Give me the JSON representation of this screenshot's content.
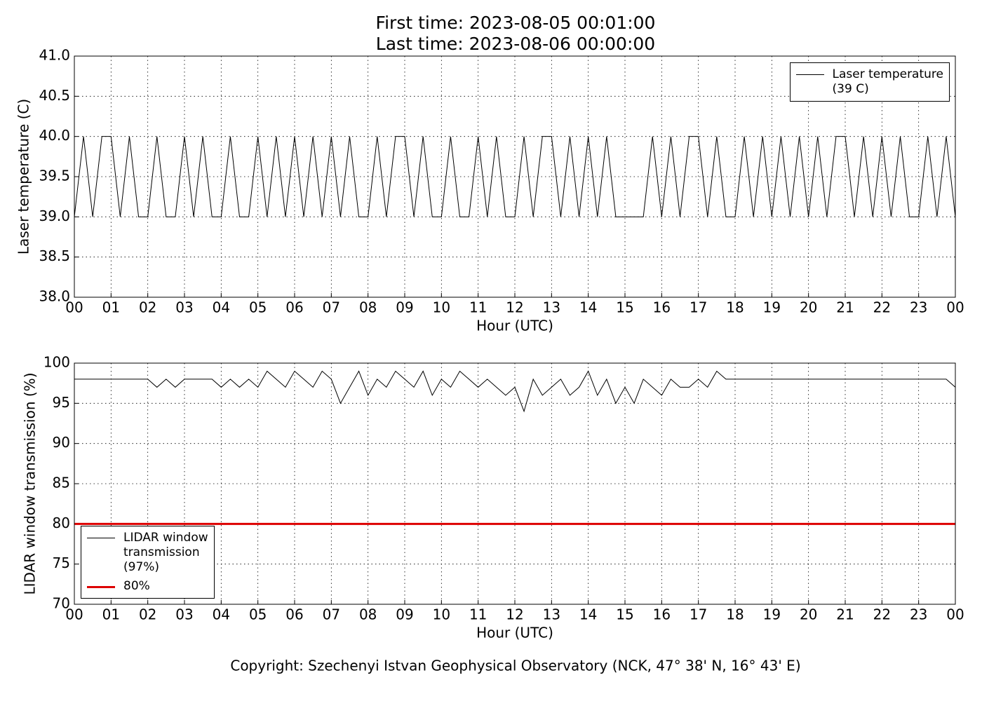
{
  "chart_data": [
    {
      "type": "line",
      "title": "First time: 2023-08-05 00:01:00",
      "subtitle": "Last time: 2023-08-06 00:00:00",
      "xlabel": "Hour (UTC)",
      "ylabel": "Laser temperature (C)",
      "xlim": [
        0,
        24
      ],
      "ylim": [
        38,
        41
      ],
      "grid": true,
      "legend": "upper right",
      "xticks": [
        {
          "value": 0,
          "label": "00"
        },
        {
          "value": 1,
          "label": "01"
        },
        {
          "value": 2,
          "label": "02"
        },
        {
          "value": 3,
          "label": "03"
        },
        {
          "value": 4,
          "label": "04"
        },
        {
          "value": 5,
          "label": "05"
        },
        {
          "value": 6,
          "label": "06"
        },
        {
          "value": 7,
          "label": "07"
        },
        {
          "value": 8,
          "label": "08"
        },
        {
          "value": 9,
          "label": "09"
        },
        {
          "value": 10,
          "label": "10"
        },
        {
          "value": 11,
          "label": "11"
        },
        {
          "value": 12,
          "label": "12"
        },
        {
          "value": 13,
          "label": "13"
        },
        {
          "value": 14,
          "label": "14"
        },
        {
          "value": 15,
          "label": "15"
        },
        {
          "value": 16,
          "label": "16"
        },
        {
          "value": 17,
          "label": "17"
        },
        {
          "value": 18,
          "label": "18"
        },
        {
          "value": 19,
          "label": "19"
        },
        {
          "value": 20,
          "label": "20"
        },
        {
          "value": 21,
          "label": "21"
        },
        {
          "value": 22,
          "label": "22"
        },
        {
          "value": 23,
          "label": "23"
        },
        {
          "value": 24,
          "label": "00"
        }
      ],
      "yticks": [
        {
          "value": 38,
          "label": "38.0"
        },
        {
          "value": 38.5,
          "label": "38.5"
        },
        {
          "value": 39,
          "label": "39.0"
        },
        {
          "value": 39.5,
          "label": "39.5"
        },
        {
          "value": 40,
          "label": "40.0"
        },
        {
          "value": 40.5,
          "label": "40.5"
        },
        {
          "value": 41,
          "label": "41.0"
        }
      ],
      "series": [
        {
          "name": "Laser temperature\n(39 C)",
          "color": "#000000",
          "width": 1,
          "x": [
            0,
            0.25,
            0.5,
            0.75,
            1,
            1.25,
            1.5,
            1.75,
            2,
            2.25,
            2.5,
            2.75,
            3,
            3.25,
            3.5,
            3.75,
            4,
            4.25,
            4.5,
            4.75,
            5,
            5.25,
            5.5,
            5.75,
            6,
            6.25,
            6.5,
            6.75,
            7,
            7.25,
            7.5,
            7.75,
            8,
            8.25,
            8.5,
            8.75,
            9,
            9.25,
            9.5,
            9.75,
            10,
            10.25,
            10.5,
            10.75,
            11,
            11.25,
            11.5,
            11.75,
            12,
            12.25,
            12.5,
            12.75,
            13,
            13.25,
            13.5,
            13.75,
            14,
            14.25,
            14.5,
            14.75,
            15,
            15.25,
            15.5,
            15.75,
            16,
            16.25,
            16.5,
            16.75,
            17,
            17.25,
            17.5,
            17.75,
            18,
            18.25,
            18.5,
            18.75,
            19,
            19.25,
            19.5,
            19.75,
            20,
            20.25,
            20.5,
            20.75,
            21,
            21.25,
            21.5,
            21.75,
            22,
            22.25,
            22.5,
            22.75,
            23,
            23.25,
            23.5,
            23.75,
            24
          ],
          "values": [
            39,
            40,
            39,
            40,
            40,
            39,
            40,
            39,
            39,
            40,
            39,
            39,
            40,
            39,
            40,
            39,
            39,
            40,
            39,
            39,
            40,
            39,
            40,
            39,
            40,
            39,
            40,
            39,
            40,
            39,
            40,
            39,
            39,
            40,
            39,
            40,
            40,
            39,
            40,
            39,
            39,
            40,
            39,
            39,
            40,
            39,
            40,
            39,
            39,
            40,
            39,
            40,
            40,
            39,
            40,
            39,
            40,
            39,
            40,
            39,
            39,
            39,
            39,
            40,
            39,
            40,
            39,
            40,
            40,
            39,
            40,
            39,
            39,
            40,
            39,
            40,
            39,
            40,
            39,
            40,
            39,
            40,
            39,
            40,
            40,
            39,
            40,
            39,
            40,
            39,
            40,
            39,
            39,
            40,
            39,
            40,
            39
          ]
        }
      ]
    },
    {
      "type": "line",
      "xlabel": "Hour (UTC)",
      "ylabel": "LIDAR window transmission (%)",
      "xlim": [
        0,
        24
      ],
      "ylim": [
        70,
        100
      ],
      "grid": true,
      "legend": "lower left",
      "xticks": [
        {
          "value": 0,
          "label": "00"
        },
        {
          "value": 1,
          "label": "01"
        },
        {
          "value": 2,
          "label": "02"
        },
        {
          "value": 3,
          "label": "03"
        },
        {
          "value": 4,
          "label": "04"
        },
        {
          "value": 5,
          "label": "05"
        },
        {
          "value": 6,
          "label": "06"
        },
        {
          "value": 7,
          "label": "07"
        },
        {
          "value": 8,
          "label": "08"
        },
        {
          "value": 9,
          "label": "09"
        },
        {
          "value": 10,
          "label": "10"
        },
        {
          "value": 11,
          "label": "11"
        },
        {
          "value": 12,
          "label": "12"
        },
        {
          "value": 13,
          "label": "13"
        },
        {
          "value": 14,
          "label": "14"
        },
        {
          "value": 15,
          "label": "15"
        },
        {
          "value": 16,
          "label": "16"
        },
        {
          "value": 17,
          "label": "17"
        },
        {
          "value": 18,
          "label": "18"
        },
        {
          "value": 19,
          "label": "19"
        },
        {
          "value": 20,
          "label": "20"
        },
        {
          "value": 21,
          "label": "21"
        },
        {
          "value": 22,
          "label": "22"
        },
        {
          "value": 23,
          "label": "23"
        },
        {
          "value": 24,
          "label": "00"
        }
      ],
      "yticks": [
        70,
        75,
        80,
        85,
        90,
        95,
        100
      ],
      "series": [
        {
          "name": "LIDAR window\ntransmission\n(97%)",
          "color": "#000000",
          "width": 1,
          "x": [
            0,
            0.25,
            0.5,
            0.75,
            1,
            1.25,
            1.5,
            1.75,
            2,
            2.25,
            2.5,
            2.75,
            3,
            3.25,
            3.5,
            3.75,
            4,
            4.25,
            4.5,
            4.75,
            5,
            5.25,
            5.5,
            5.75,
            6,
            6.25,
            6.5,
            6.75,
            7,
            7.25,
            7.5,
            7.75,
            8,
            8.25,
            8.5,
            8.75,
            9,
            9.25,
            9.5,
            9.75,
            10,
            10.25,
            10.5,
            10.75,
            11,
            11.25,
            11.5,
            11.75,
            12,
            12.25,
            12.5,
            12.75,
            13,
            13.25,
            13.5,
            13.75,
            14,
            14.25,
            14.5,
            14.75,
            15,
            15.25,
            15.5,
            15.75,
            16,
            16.25,
            16.5,
            16.75,
            17,
            17.25,
            17.5,
            17.75,
            18,
            18.25,
            18.5,
            18.75,
            19,
            19.25,
            19.5,
            19.75,
            20,
            20.25,
            20.5,
            20.75,
            21,
            21.25,
            21.5,
            21.75,
            22,
            22.25,
            22.5,
            22.75,
            23,
            23.25,
            23.5,
            23.75,
            24
          ],
          "values": [
            98,
            98,
            98,
            98,
            98,
            98,
            98,
            98,
            98,
            97,
            98,
            97,
            98,
            98,
            98,
            98,
            97,
            98,
            97,
            98,
            97,
            99,
            98,
            97,
            99,
            98,
            97,
            99,
            98,
            95,
            97,
            99,
            96,
            98,
            97,
            99,
            98,
            97,
            99,
            96,
            98,
            97,
            99,
            98,
            97,
            98,
            97,
            96,
            97,
            94,
            98,
            96,
            97,
            98,
            96,
            97,
            99,
            96,
            98,
            95,
            97,
            95,
            98,
            97,
            96,
            98,
            97,
            97,
            98,
            97,
            99,
            98,
            98,
            98,
            98,
            98,
            98,
            98,
            98,
            98,
            98,
            98,
            98,
            98,
            98,
            98,
            98,
            98,
            98,
            98,
            98,
            98,
            98,
            98,
            98,
            98,
            97
          ]
        },
        {
          "name": "80%",
          "color": "#dd0000",
          "width": 3,
          "x": [
            0,
            24
          ],
          "values": [
            80,
            80
          ]
        }
      ]
    }
  ],
  "copyright": "Copyright: Szechenyi Istvan Geophysical Observatory (NCK, 47° 38' N, 16° 43' E)"
}
